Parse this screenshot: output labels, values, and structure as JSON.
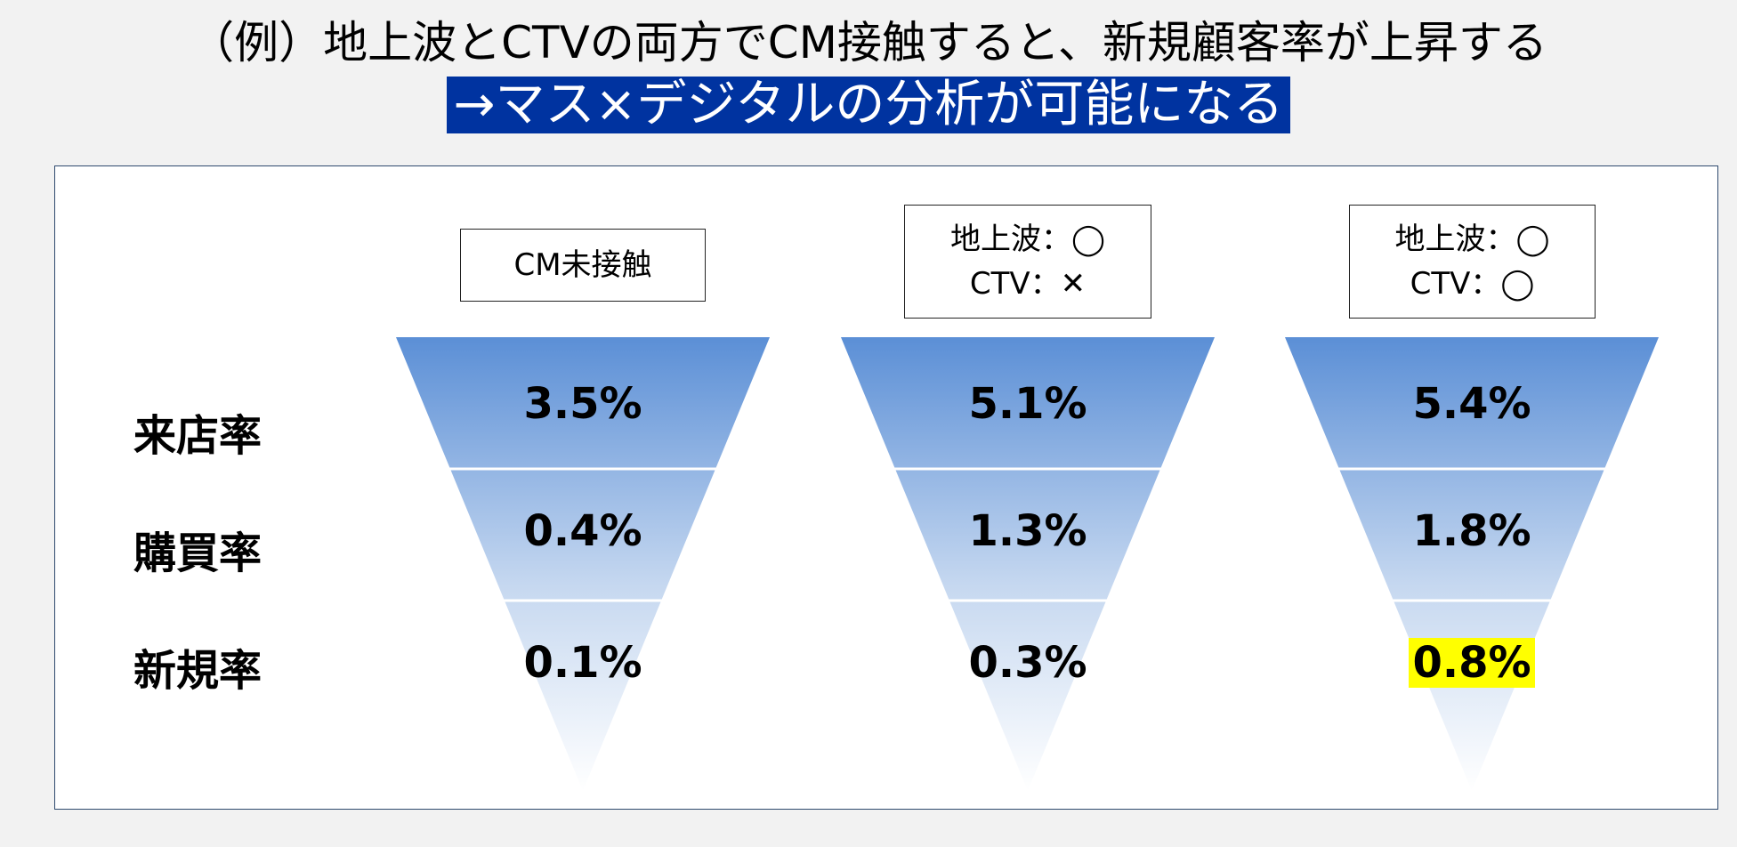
{
  "title": "（例）地上波とCTVの両方でCM接触すると、新規顧客率が上昇する",
  "subtitle": "→マス×デジタルの分析が可能になる",
  "row_labels": [
    "来店率",
    "購買率",
    "新規率"
  ],
  "columns": [
    {
      "header_line1": "CM未接触",
      "header_line2": "",
      "values": [
        "3.5%",
        "0.4%",
        "0.1%"
      ]
    },
    {
      "header_line1": "地上波：◯",
      "header_line2": "CTV：✕",
      "values": [
        "5.1%",
        "1.3%",
        "0.3%"
      ]
    },
    {
      "header_line1": "地上波：◯",
      "header_line2": "CTV：◯",
      "values": [
        "5.4%",
        "1.8%",
        "0.8%"
      ]
    }
  ],
  "highlight": {
    "column": 2,
    "row": 2,
    "color": "#ffff00"
  },
  "colors": {
    "subtitle_bg": "#0033a0",
    "funnel_top": "#5b8fd6",
    "funnel_bottom": "#ffffff"
  }
}
